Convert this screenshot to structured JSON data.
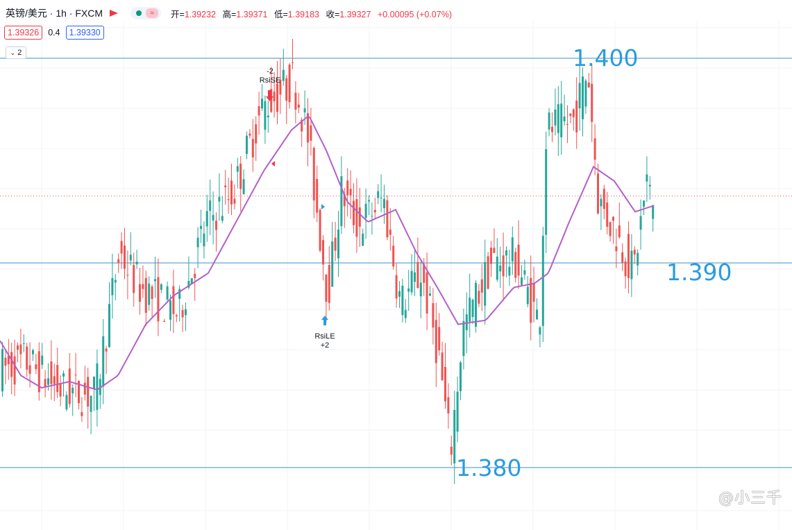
{
  "header": {
    "symbol": "英镑/美元 · 1h · FXCM",
    "ohlc": [
      {
        "label": "开=",
        "value": "1.39232"
      },
      {
        "label": "高=",
        "value": "1.39371"
      },
      {
        "label": "低=",
        "value": "1.39183"
      },
      {
        "label": "收=",
        "value": "1.39327"
      },
      {
        "label": "",
        "value": "+0.00095 (+0.07%)"
      }
    ],
    "wave_icon": "≈"
  },
  "quote": {
    "sell": "1.39326",
    "spread": "0.4",
    "buy": "1.39330"
  },
  "collapse_count": "2",
  "levels": {
    "top": "1.400",
    "mid": "1.390",
    "bottom": "1.380"
  },
  "signals": {
    "short": {
      "count": "-2",
      "name": "RsiSE"
    },
    "long": {
      "name": "RsiLE",
      "count": "+2"
    }
  },
  "watermark": "@小三千",
  "colors": {
    "up": "#26a69a",
    "down": "#ef5350",
    "ma": "#b45fc7",
    "hline": "#3d8fc4",
    "label": "#2a9be0",
    "last_price": "#ef5350"
  },
  "chart_data": {
    "type": "candlestick",
    "symbol": "GBP/USD",
    "timeframe": "1h",
    "y_levels": [
      1.4,
      1.39,
      1.38
    ],
    "last_price": 1.39327,
    "trend": [
      [
        0,
        1.3848
      ],
      [
        40,
        1.3852
      ],
      [
        90,
        1.3838
      ],
      [
        140,
        1.3835
      ],
      [
        175,
        1.3905
      ],
      [
        205,
        1.3888
      ],
      [
        260,
        1.3875
      ],
      [
        300,
        1.392
      ],
      [
        340,
        1.3935
      ],
      [
        380,
        1.3975
      ],
      [
        425,
        1.399
      ],
      [
        445,
        1.3965
      ],
      [
        475,
        1.3885
      ],
      [
        495,
        1.3935
      ],
      [
        520,
        1.3918
      ],
      [
        555,
        1.3932
      ],
      [
        580,
        1.388
      ],
      [
        610,
        1.3895
      ],
      [
        635,
        1.3855
      ],
      [
        652,
        1.3808
      ],
      [
        670,
        1.3868
      ],
      [
        710,
        1.39
      ],
      [
        745,
        1.3902
      ],
      [
        780,
        1.387
      ],
      [
        790,
        1.3965
      ],
      [
        830,
        1.397
      ],
      [
        850,
        1.3995
      ],
      [
        865,
        1.393
      ],
      [
        890,
        1.3915
      ],
      [
        915,
        1.3895
      ],
      [
        935,
        1.394
      ],
      [
        942,
        1.3927
      ]
    ],
    "ma": [
      [
        0,
        1.3862
      ],
      [
        30,
        1.3845
      ],
      [
        60,
        1.3839
      ],
      [
        100,
        1.3842
      ],
      [
        140,
        1.3838
      ],
      [
        170,
        1.3845
      ],
      [
        210,
        1.387
      ],
      [
        250,
        1.3884
      ],
      [
        300,
        1.3895
      ],
      [
        340,
        1.392
      ],
      [
        380,
        1.3945
      ],
      [
        420,
        1.3965
      ],
      [
        445,
        1.3972
      ],
      [
        470,
        1.3955
      ],
      [
        500,
        1.393
      ],
      [
        530,
        1.392
      ],
      [
        570,
        1.3926
      ],
      [
        600,
        1.3905
      ],
      [
        630,
        1.3888
      ],
      [
        660,
        1.387
      ],
      [
        700,
        1.3872
      ],
      [
        740,
        1.3888
      ],
      [
        770,
        1.389
      ],
      [
        790,
        1.3895
      ],
      [
        820,
        1.392
      ],
      [
        855,
        1.3947
      ],
      [
        885,
        1.394
      ],
      [
        915,
        1.3925
      ],
      [
        942,
        1.3928
      ]
    ]
  }
}
